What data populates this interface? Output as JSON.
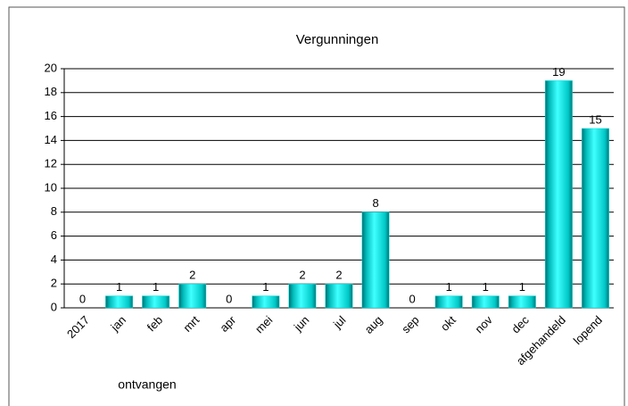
{
  "chart_data": {
    "type": "bar",
    "title": "Vergunningen",
    "x_label": "ontvangen",
    "categories": [
      "2017",
      "jan",
      "feb",
      "mrt",
      "apr",
      "mei",
      "jun",
      "jul",
      "aug",
      "sep",
      "okt",
      "nov",
      "dec",
      "afgehandeld",
      "lopend"
    ],
    "values": [
      0,
      1,
      1,
      2,
      0,
      1,
      2,
      2,
      8,
      0,
      1,
      1,
      1,
      19,
      15
    ],
    "color": "#00e0e0",
    "ylim": [
      0,
      20
    ],
    "yticks": [
      0,
      2,
      4,
      6,
      8,
      10,
      12,
      14,
      16,
      18,
      20
    ],
    "grid": true
  }
}
